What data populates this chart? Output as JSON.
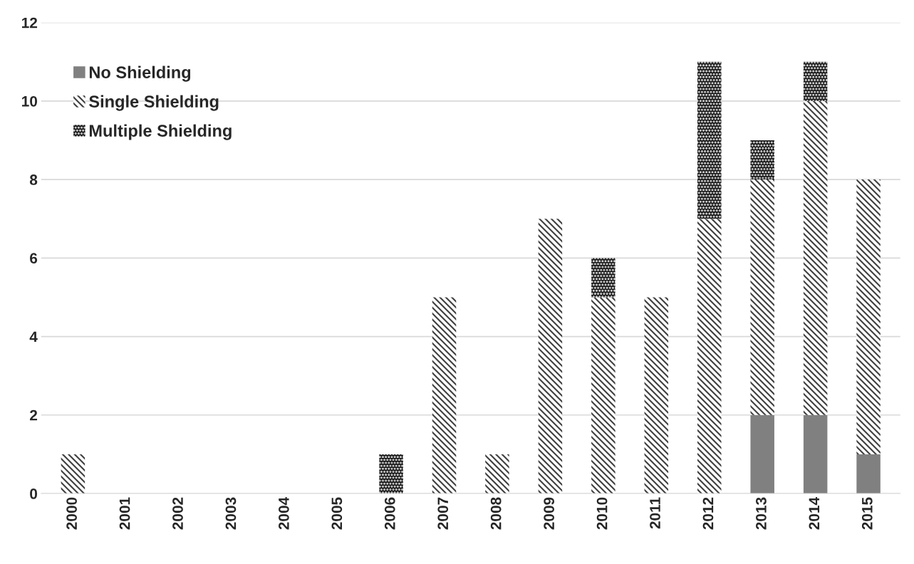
{
  "chart_data": {
    "type": "bar",
    "stacked": true,
    "categories": [
      "2000",
      "2001",
      "2002",
      "2003",
      "2004",
      "2005",
      "2006",
      "2007",
      "2008",
      "2009",
      "2010",
      "2011",
      "2012",
      "2013",
      "2014",
      "2015"
    ],
    "series": [
      {
        "name": "No Shielding",
        "color": "#808080",
        "values": [
          0,
          0,
          0,
          0,
          0,
          0,
          0,
          0,
          0,
          0,
          0,
          0,
          0,
          2,
          2,
          1
        ]
      },
      {
        "name": "Single Shielding",
        "color": "#404040",
        "values": [
          1,
          0,
          0,
          0,
          0,
          0,
          0,
          5,
          1,
          7,
          5,
          5,
          7,
          6,
          8,
          7
        ]
      },
      {
        "name": "Multiple Shielding",
        "color": "#1a1a1a",
        "values": [
          0,
          0,
          0,
          0,
          0,
          0,
          1,
          0,
          0,
          0,
          1,
          0,
          4,
          1,
          1,
          0
        ]
      }
    ],
    "ylim": [
      0,
      12
    ],
    "yticks": [
      0,
      2,
      4,
      6,
      8,
      10,
      12
    ],
    "grid": "y",
    "legend": "top left"
  }
}
